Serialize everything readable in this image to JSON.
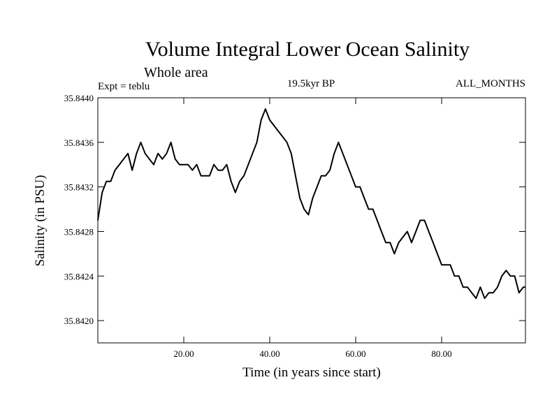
{
  "chart_data": {
    "type": "line",
    "title": "Volume Integral Lower Ocean Salinity",
    "subtitle": "Whole area",
    "experiment_label": "Expt = teblu",
    "period_label": "19.5kyr BP",
    "months_label": "ALL_MONTHS",
    "xlabel": "Time (in years since start)",
    "ylabel": "Salinity (in PSU)",
    "xlim": [
      0,
      99.5
    ],
    "ylim": [
      35.8418,
      35.844
    ],
    "x_ticks": [
      20,
      40,
      60,
      80
    ],
    "x_tick_labels": [
      "20.00",
      "40.00",
      "60.00",
      "80.00"
    ],
    "y_ticks": [
      35.842,
      35.8424,
      35.8428,
      35.8432,
      35.8436,
      35.844
    ],
    "y_tick_labels": [
      "35.8420",
      "35.8424",
      "35.8428",
      "35.8432",
      "35.8436",
      "35.8440"
    ],
    "grid": false,
    "series": [
      {
        "name": "Salinity",
        "color": "#000000",
        "x": [
          0,
          1,
          2,
          3,
          4,
          5,
          6,
          7,
          8,
          9,
          10,
          11,
          12,
          13,
          14,
          15,
          16,
          17,
          18,
          19,
          20,
          21,
          22,
          23,
          24,
          25,
          26,
          27,
          28,
          29,
          30,
          31,
          32,
          33,
          34,
          35,
          36,
          37,
          38,
          39,
          40,
          41,
          42,
          43,
          44,
          45,
          46,
          47,
          48,
          49,
          50,
          51,
          52,
          53,
          54,
          55,
          56,
          57,
          58,
          59,
          60,
          61,
          62,
          63,
          64,
          65,
          66,
          67,
          68,
          69,
          70,
          71,
          72,
          73,
          74,
          75,
          76,
          77,
          78,
          79,
          80,
          81,
          82,
          83,
          84,
          85,
          86,
          87,
          88,
          89,
          90,
          91,
          92,
          93,
          94,
          95,
          96,
          97,
          98,
          99,
          99.5
        ],
        "values": [
          35.8429,
          35.84315,
          35.84325,
          35.84325,
          35.84335,
          35.8434,
          35.84345,
          35.8435,
          35.84335,
          35.8435,
          35.8436,
          35.8435,
          35.84345,
          35.8434,
          35.8435,
          35.84345,
          35.8435,
          35.8436,
          35.84345,
          35.8434,
          35.8434,
          35.8434,
          35.84335,
          35.8434,
          35.8433,
          35.8433,
          35.8433,
          35.8434,
          35.84335,
          35.84335,
          35.8434,
          35.84325,
          35.84315,
          35.84325,
          35.8433,
          35.8434,
          35.8435,
          35.8436,
          35.8438,
          35.8439,
          35.8438,
          35.84375,
          35.8437,
          35.84365,
          35.8436,
          35.8435,
          35.8433,
          35.8431,
          35.843,
          35.84295,
          35.8431,
          35.8432,
          35.8433,
          35.8433,
          35.84335,
          35.8435,
          35.8436,
          35.8435,
          35.8434,
          35.8433,
          35.8432,
          35.8432,
          35.8431,
          35.843,
          35.843,
          35.8429,
          35.8428,
          35.8427,
          35.8427,
          35.8426,
          35.8427,
          35.84275,
          35.8428,
          35.8427,
          35.8428,
          35.8429,
          35.8429,
          35.8428,
          35.8427,
          35.8426,
          35.8425,
          35.8425,
          35.8425,
          35.8424,
          35.8424,
          35.8423,
          35.8423,
          35.84225,
          35.8422,
          35.8423,
          35.8422,
          35.84225,
          35.84225,
          35.8423,
          35.8424,
          35.84245,
          35.8424,
          35.8424,
          35.84225,
          35.8423,
          35.8423
        ]
      }
    ]
  }
}
